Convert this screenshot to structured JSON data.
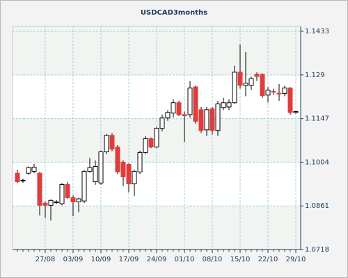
{
  "chart_data": {
    "type": "candlestick",
    "title": "USDCAD3months",
    "categories": [
      null,
      null,
      null,
      null,
      null,
      "27/08",
      null,
      null,
      null,
      null,
      "03/09",
      null,
      null,
      null,
      null,
      "10/09",
      null,
      null,
      null,
      null,
      "17/09",
      null,
      null,
      null,
      null,
      "24/09",
      null,
      null,
      null,
      null,
      "01/10",
      null,
      null,
      null,
      null,
      "08/10",
      null,
      null,
      null,
      null,
      "15/10",
      null,
      null,
      null,
      null,
      "22/10",
      null,
      null,
      null,
      null,
      "29/10"
    ],
    "open": [
      1.0968,
      1.0943,
      1.0968,
      1.0974,
      1.0968,
      1.087,
      1.0863,
      1.0872,
      1.0868,
      1.0931,
      1.0888,
      1.0874,
      1.0877,
      1.0974,
      1.094,
      1.0936,
      1.1038,
      1.1092,
      1.1054,
      1.1004,
      1.0997,
      1.0933,
      1.0972,
      1.1036,
      1.1081,
      1.1054,
      1.1115,
      1.1149,
      1.1165,
      1.1199,
      1.116,
      1.116,
      1.1251,
      1.1176,
      1.111,
      1.1179,
      1.1108,
      1.1183,
      1.1185,
      1.1199,
      1.1299,
      1.1256,
      1.1256,
      1.1292,
      1.1292,
      1.1224,
      1.1236,
      1.123,
      1.1229,
      1.1247,
      1.1167
    ],
    "high": [
      1.0979,
      1.095,
      1.099,
      1.0998,
      1.0972,
      1.0875,
      1.0882,
      1.088,
      1.0936,
      1.094,
      1.0895,
      1.0888,
      1.0979,
      1.1018,
      1.101,
      1.1042,
      1.1097,
      1.1099,
      1.106,
      1.101,
      1.1,
      1.098,
      1.1042,
      1.109,
      1.1085,
      1.112,
      1.116,
      1.1175,
      1.121,
      1.1205,
      1.117,
      1.127,
      1.1255,
      1.1185,
      1.1185,
      1.1185,
      1.1205,
      1.1215,
      1.121,
      1.132,
      1.139,
      1.1365,
      1.1285,
      1.1298,
      1.1295,
      1.125,
      1.1245,
      1.126,
      1.1255,
      1.125,
      1.1173
    ],
    "low": [
      1.0936,
      1.0936,
      1.0963,
      1.0968,
      1.083,
      1.0822,
      1.0813,
      1.0866,
      1.0863,
      1.0884,
      1.0827,
      1.084,
      1.087,
      1.097,
      1.093,
      1.093,
      1.103,
      1.104,
      1.0965,
      1.0925,
      1.0905,
      1.0893,
      1.0965,
      1.103,
      1.105,
      1.105,
      1.1105,
      1.114,
      1.115,
      1.1155,
      1.107,
      1.115,
      1.113,
      1.11,
      1.109,
      1.1095,
      1.109,
      1.1175,
      1.1175,
      1.1195,
      1.1245,
      1.122,
      1.124,
      1.127,
      1.1215,
      1.12,
      1.1225,
      1.1205,
      1.122,
      1.116,
      1.1163
    ],
    "close": [
      1.094,
      1.0945,
      1.0986,
      1.0988,
      1.0863,
      1.0863,
      1.0879,
      1.0874,
      1.0931,
      1.0888,
      1.0874,
      1.0884,
      1.0974,
      1.0986,
      1.099,
      1.1038,
      1.1092,
      1.1047,
      1.0972,
      1.0956,
      1.0933,
      1.0974,
      1.1036,
      1.1081,
      1.1054,
      1.1115,
      1.1149,
      1.1167,
      1.1199,
      1.116,
      1.1156,
      1.1247,
      1.1138,
      1.1108,
      1.1176,
      1.1108,
      1.1195,
      1.1199,
      1.1199,
      1.1299,
      1.1256,
      1.1263,
      1.1278,
      1.1285,
      1.1222,
      1.124,
      1.1235,
      1.1229,
      1.1247,
      1.1167,
      1.117
    ],
    "up_color": "#ffffff",
    "down_color": "#e03c3c",
    "ylim": [
      1.0718,
      1.1449
    ],
    "yticks": [
      1.0718,
      1.0861,
      1.1004,
      1.1147,
      1.129,
      1.1433
    ],
    "grid": true
  }
}
